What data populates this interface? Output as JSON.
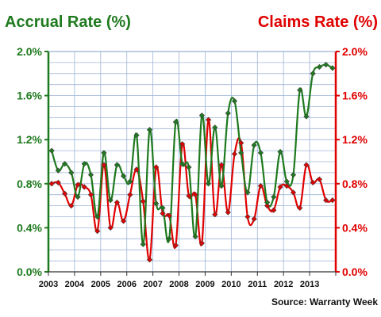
{
  "chart_data": {
    "type": "line",
    "title_left": "Accrual Rate (%)",
    "title_right": "Claims Rate (%)",
    "source": "Source: Warranty Week",
    "x_tick_labels": [
      "2003",
      "2004",
      "2005",
      "2006",
      "2007",
      "2008",
      "2009",
      "2010",
      "2011",
      "2012",
      "2013"
    ],
    "y_ticks_left": [
      "0.0%",
      "0.4%",
      "0.8%",
      "1.2%",
      "1.6%",
      "2.0%"
    ],
    "y_ticks_right": [
      "0.0%",
      "0.4%",
      "0.8%",
      "1.2%",
      "1.6%",
      "2.0%"
    ],
    "ylim": [
      0,
      2.0
    ],
    "grid": true,
    "x": [
      "2003 Q1",
      "2003 Q2",
      "2003 Q3",
      "2003 Q4",
      "2004 Q1",
      "2004 Q2",
      "2004 Q3",
      "2004 Q4",
      "2005 Q1",
      "2005 Q2",
      "2005 Q3",
      "2005 Q4",
      "2006 Q1",
      "2006 Q2",
      "2006 Q3",
      "2006 Q4",
      "2007 Q1",
      "2007 Q2",
      "2007 Q3",
      "2007 Q4",
      "2008 Q1",
      "2008 Q2",
      "2008 Q3",
      "2008 Q4",
      "2009 Q1",
      "2009 Q2",
      "2009 Q3",
      "2009 Q4",
      "2010 Q1",
      "2010 Q2",
      "2010 Q3",
      "2010 Q4",
      "2011 Q1",
      "2011 Q2",
      "2011 Q3",
      "2011 Q4",
      "2012 Q1",
      "2012 Q2",
      "2012 Q3",
      "2012 Q4",
      "2013 Q1",
      "2013 Q2",
      "2013 Q3",
      "2013 Q4"
    ],
    "series": [
      {
        "name": "Accrual Rate (%)",
        "axis": "left",
        "color": "#1e7a1e",
        "values": [
          1.1,
          0.92,
          0.98,
          0.9,
          0.68,
          0.98,
          0.88,
          0.5,
          1.08,
          0.65,
          0.97,
          0.87,
          0.82,
          1.24,
          0.25,
          1.29,
          0.62,
          0.58,
          0.3,
          1.36,
          0.98,
          0.95,
          0.32,
          1.42,
          0.8,
          1.31,
          0.78,
          1.44,
          1.55,
          1.08,
          0.72,
          1.15,
          1.08,
          0.63,
          0.68,
          1.09,
          0.82,
          0.88,
          1.65,
          1.41,
          1.8,
          1.86,
          1.88,
          1.85
        ]
      },
      {
        "name": "Claims Rate (%)",
        "axis": "right",
        "color": "#e00000",
        "values": [
          0.8,
          0.81,
          0.71,
          0.6,
          0.79,
          0.77,
          0.7,
          0.37,
          0.97,
          0.4,
          0.63,
          0.46,
          0.7,
          0.93,
          0.64,
          0.11,
          0.95,
          0.53,
          0.51,
          0.24,
          1.16,
          0.69,
          0.7,
          0.26,
          1.38,
          0.52,
          0.97,
          0.54,
          1.07,
          1.17,
          0.5,
          0.48,
          0.78,
          0.6,
          0.56,
          0.77,
          0.78,
          0.72,
          0.58,
          0.97,
          0.81,
          0.84,
          0.65,
          0.65
        ]
      }
    ]
  }
}
